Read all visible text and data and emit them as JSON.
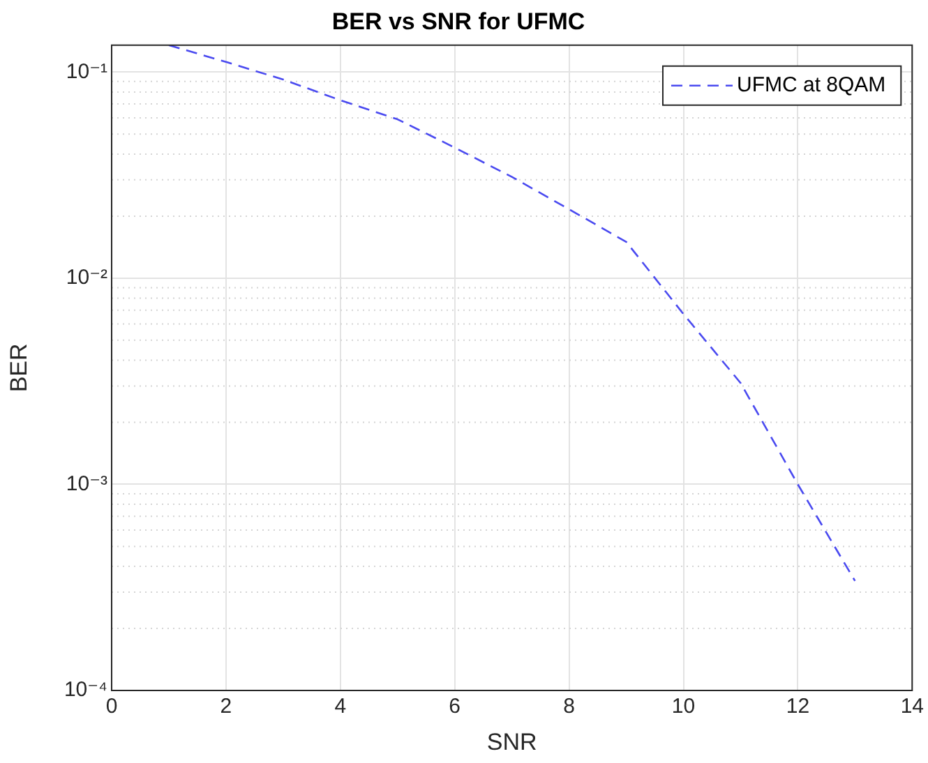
{
  "chart_data": {
    "type": "line",
    "title": "BER vs SNR for UFMC",
    "xlabel": "SNR",
    "ylabel": "BER",
    "x": [
      1,
      2,
      3,
      4,
      5,
      6,
      7,
      8,
      9,
      10,
      11,
      12,
      13
    ],
    "series": [
      {
        "name": "UFMC at 8QAM",
        "color": "#4a4af0",
        "values": [
          0.135,
          0.112,
          0.092,
          0.073,
          0.059,
          0.043,
          0.031,
          0.0216,
          0.015,
          0.0067,
          0.0031,
          0.001,
          0.00034
        ]
      }
    ],
    "xlim": [
      0,
      14
    ],
    "xticks": [
      0,
      2,
      4,
      6,
      8,
      10,
      12,
      14
    ],
    "ylim": [
      0.0001,
      0.135
    ],
    "yticks": [
      {
        "value": 0.0001,
        "label": "10⁻⁴"
      },
      {
        "value": 0.001,
        "label": "10⁻³"
      },
      {
        "value": 0.01,
        "label": "10⁻²"
      },
      {
        "value": 0.1,
        "label": "10⁻¹"
      }
    ],
    "log": "y",
    "grid": true,
    "legend": "top right",
    "line_style": "dashed",
    "marker": "none"
  }
}
